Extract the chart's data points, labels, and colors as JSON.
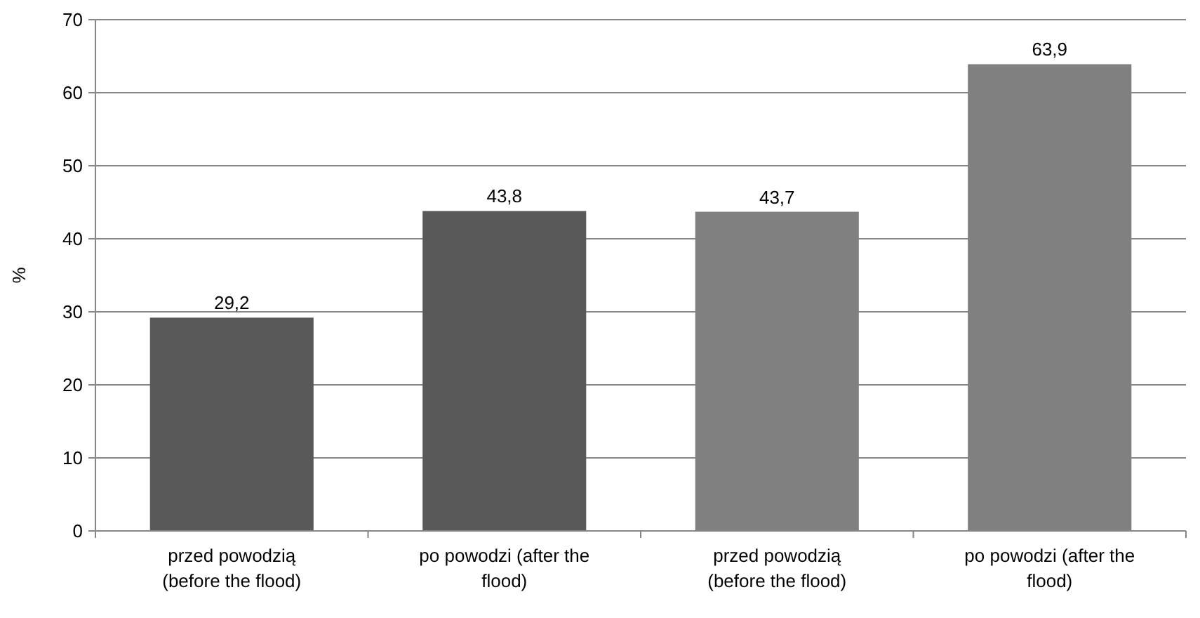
{
  "chart_data": {
    "type": "bar",
    "ylabel": "%",
    "categories": [
      "przed powodzią (before the flood)",
      "po powodzi (after the flood)",
      "przed powodzią (before the flood)",
      "po powodzi (after the flood)"
    ],
    "values": [
      29.2,
      43.8,
      43.7,
      63.9
    ],
    "value_labels": [
      "29,2",
      "43,8",
      "43,7",
      "63,9"
    ],
    "colors": [
      "#595959",
      "#595959",
      "#808080",
      "#808080"
    ],
    "ylim": [
      0,
      70
    ],
    "yticks": [
      0,
      10,
      20,
      30,
      40,
      50,
      60,
      70
    ],
    "grid": "y"
  }
}
